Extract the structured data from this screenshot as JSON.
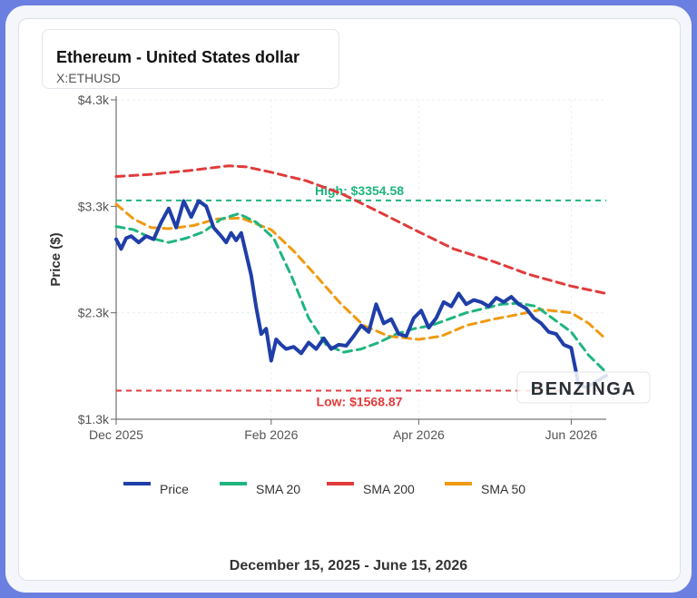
{
  "header": {
    "title": "Ethereum - United States dollar",
    "symbol": "X:ETHUSD"
  },
  "footer": {
    "date_range": "December 15, 2025 - June 15, 2026"
  },
  "watermark": "BENZINGA",
  "colors": {
    "price": "#1f3ea8",
    "sma20": "#1fb57e",
    "sma200": "#e03c3c",
    "sma50": "#f09a12",
    "high": "#1fb57e",
    "low": "#e03c3c",
    "border": "#6b7fe0"
  },
  "chart_data": {
    "type": "line",
    "ylabel": "Price ($)",
    "ylim": [
      1300,
      4300
    ],
    "yticks": [
      {
        "v": 4300,
        "label": "$4.3k"
      },
      {
        "v": 3300,
        "label": "$3.3k"
      },
      {
        "v": 2300,
        "label": "$2.3k"
      },
      {
        "v": 1300,
        "label": "$1.3k"
      }
    ],
    "xlim": [
      "2025-12-01",
      "2026-06-15"
    ],
    "xticks": [
      {
        "d": "2025-12-01",
        "label": "Dec 2025"
      },
      {
        "d": "2026-02-01",
        "label": "Feb 2026"
      },
      {
        "d": "2026-04-01",
        "label": "Apr 2026"
      },
      {
        "d": "2026-06-01",
        "label": "Jun 2026"
      }
    ],
    "high": {
      "value": 3354.58,
      "label": "High: $3354.58"
    },
    "low": {
      "value": 1568.87,
      "label": "Low: $1568.87"
    },
    "legend": {
      "placement": "bottom"
    },
    "series": [
      {
        "name": "Price",
        "x": [
          "2025-12-01",
          "2025-12-03",
          "2025-12-05",
          "2025-12-07",
          "2025-12-10",
          "2025-12-13",
          "2025-12-16",
          "2025-12-19",
          "2025-12-22",
          "2025-12-25",
          "2025-12-28",
          "2025-12-31",
          "2026-01-03",
          "2026-01-06",
          "2026-01-09",
          "2026-01-12",
          "2026-01-14",
          "2026-01-16",
          "2026-01-18",
          "2026-01-20",
          "2026-01-22",
          "2026-01-24",
          "2026-01-26",
          "2026-01-28",
          "2026-01-30",
          "2026-02-01",
          "2026-02-03",
          "2026-02-05",
          "2026-02-07",
          "2026-02-10",
          "2026-02-13",
          "2026-02-16",
          "2026-02-19",
          "2026-02-22",
          "2026-02-25",
          "2026-02-28",
          "2026-03-03",
          "2026-03-06",
          "2026-03-09",
          "2026-03-12",
          "2026-03-15",
          "2026-03-18",
          "2026-03-21",
          "2026-03-24",
          "2026-03-27",
          "2026-03-30",
          "2026-04-02",
          "2026-04-05",
          "2026-04-08",
          "2026-04-11",
          "2026-04-14",
          "2026-04-17",
          "2026-04-20",
          "2026-04-23",
          "2026-04-26",
          "2026-04-29",
          "2026-05-02",
          "2026-05-05",
          "2026-05-08",
          "2026-05-11",
          "2026-05-14",
          "2026-05-17",
          "2026-05-20",
          "2026-05-23",
          "2026-05-26",
          "2026-05-29",
          "2026-06-01",
          "2026-06-04",
          "2026-06-07",
          "2026-06-10",
          "2026-06-15"
        ],
        "values": [
          2990,
          2900,
          3000,
          3020,
          2960,
          3020,
          2990,
          3150,
          3280,
          3100,
          3350,
          3200,
          3350,
          3300,
          3100,
          3020,
          2960,
          3050,
          2980,
          3050,
          2850,
          2650,
          2350,
          2100,
          2150,
          1850,
          2050,
          2000,
          1960,
          1980,
          1920,
          2020,
          1960,
          2060,
          1960,
          2000,
          1990,
          2080,
          2180,
          2120,
          2380,
          2200,
          2240,
          2100,
          2080,
          2250,
          2320,
          2160,
          2250,
          2400,
          2360,
          2480,
          2380,
          2420,
          2400,
          2360,
          2440,
          2400,
          2450,
          2380,
          2340,
          2250,
          2200,
          2120,
          2100,
          2000,
          1970,
          1620,
          1600,
          1640,
          1710
        ]
      },
      {
        "name": "SMA 20",
        "x": [
          "2025-12-01",
          "2025-12-08",
          "2025-12-15",
          "2025-12-22",
          "2025-12-29",
          "2026-01-05",
          "2026-01-12",
          "2026-01-19",
          "2026-01-26",
          "2026-02-02",
          "2026-02-09",
          "2026-02-16",
          "2026-02-23",
          "2026-03-02",
          "2026-03-09",
          "2026-03-16",
          "2026-03-23",
          "2026-03-30",
          "2026-04-06",
          "2026-04-13",
          "2026-04-20",
          "2026-04-27",
          "2026-05-04",
          "2026-05-11",
          "2026-05-18",
          "2026-05-25",
          "2026-06-01",
          "2026-06-08",
          "2026-06-15"
        ],
        "values": [
          3110,
          3080,
          3000,
          2960,
          3000,
          3060,
          3180,
          3230,
          3150,
          3000,
          2650,
          2250,
          2000,
          1930,
          1960,
          2020,
          2100,
          2150,
          2180,
          2240,
          2300,
          2340,
          2380,
          2390,
          2360,
          2240,
          2120,
          1900,
          1740
        ]
      },
      {
        "name": "SMA 200",
        "x": [
          "2025-12-01",
          "2025-12-15",
          "2026-01-01",
          "2026-01-15",
          "2026-01-22",
          "2026-02-01",
          "2026-02-15",
          "2026-03-01",
          "2026-03-15",
          "2026-04-01",
          "2026-04-15",
          "2026-05-01",
          "2026-05-15",
          "2026-06-01",
          "2026-06-15"
        ],
        "values": [
          3580,
          3600,
          3640,
          3680,
          3670,
          3620,
          3540,
          3420,
          3260,
          3060,
          2900,
          2780,
          2660,
          2550,
          2480
        ]
      },
      {
        "name": "SMA 50",
        "x": [
          "2025-12-01",
          "2025-12-08",
          "2025-12-15",
          "2025-12-22",
          "2026-01-01",
          "2026-01-10",
          "2026-01-20",
          "2026-02-01",
          "2026-02-10",
          "2026-02-20",
          "2026-03-01",
          "2026-03-10",
          "2026-03-20",
          "2026-04-01",
          "2026-04-10",
          "2026-04-20",
          "2026-05-01",
          "2026-05-10",
          "2026-05-20",
          "2026-06-01",
          "2026-06-08",
          "2026-06-15"
        ],
        "values": [
          3320,
          3180,
          3100,
          3090,
          3120,
          3180,
          3190,
          3080,
          2880,
          2620,
          2380,
          2180,
          2080,
          2050,
          2080,
          2180,
          2240,
          2280,
          2330,
          2300,
          2200,
          2050
        ]
      }
    ]
  }
}
